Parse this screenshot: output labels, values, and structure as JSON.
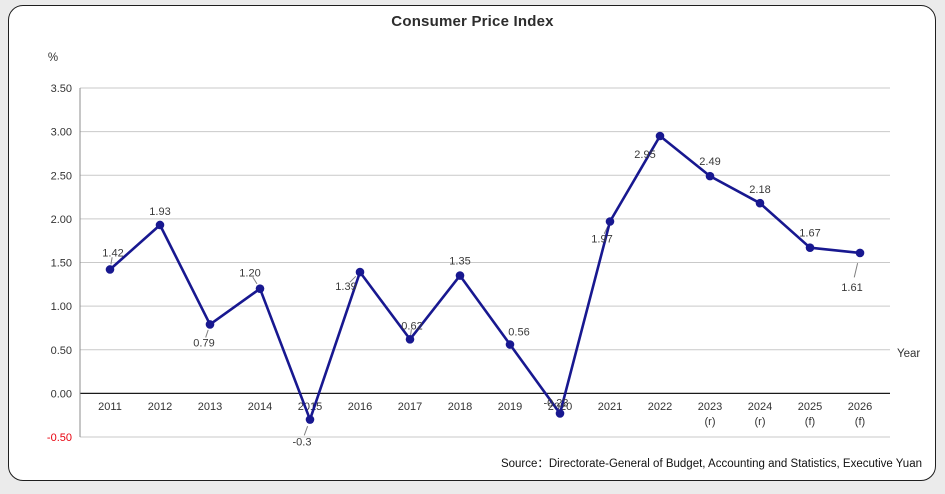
{
  "window": {
    "background_color": "#ebebeb",
    "card_background": "#ffffff",
    "card_border_color": "#1f1f1f"
  },
  "header": {
    "title": "Consumer Price Index"
  },
  "chart_data": {
    "type": "line",
    "title": "Consumer Price Index",
    "unit_label": "%",
    "x_axis_label": "Year",
    "categories": [
      "2011",
      "2012",
      "2013",
      "2014",
      "2015",
      "2016",
      "2017",
      "2018",
      "2019",
      "2020",
      "2021",
      "2022",
      "2023",
      "2024",
      "2025",
      "2026"
    ],
    "category_notes": [
      "",
      "",
      "",
      "",
      "",
      "",
      "",
      "",
      "",
      "",
      "",
      "",
      "(r)",
      "(r)",
      "(f)",
      "(f)"
    ],
    "values": [
      1.42,
      1.93,
      0.79,
      1.2,
      -0.3,
      1.39,
      0.62,
      1.35,
      0.56,
      -0.23,
      1.97,
      2.95,
      2.49,
      2.18,
      1.67,
      1.61
    ],
    "point_labels": [
      "1.42",
      "1.93",
      "0.79",
      "1.20",
      "-0.3",
      "1.39",
      "0.62",
      "1.35",
      "0.56",
      "-0.23",
      "1.97",
      "2.95",
      "2.49",
      "2.18",
      "1.67",
      "1.61"
    ],
    "ylim": [
      -0.5,
      3.5
    ],
    "y_tick_step": 0.5,
    "y_tick_labels": [
      "3.50",
      "3.00",
      "2.50",
      "2.00",
      "1.50",
      "1.00",
      "0.50",
      "0.00",
      "-0.50"
    ],
    "y_tick_color": "#333333",
    "negative_tick_color": "#e8000d",
    "line_color": "#181890",
    "marker_color": "#181890",
    "grid_color": "#c9c9c9",
    "zero_axis_color": "#1a1a1a",
    "label_color": "#3a3a3a",
    "grid": true,
    "legend_position": "none"
  },
  "footer": {
    "source": "Source：Directorate-General of Budget, Accounting and Statistics, Executive Yuan"
  }
}
